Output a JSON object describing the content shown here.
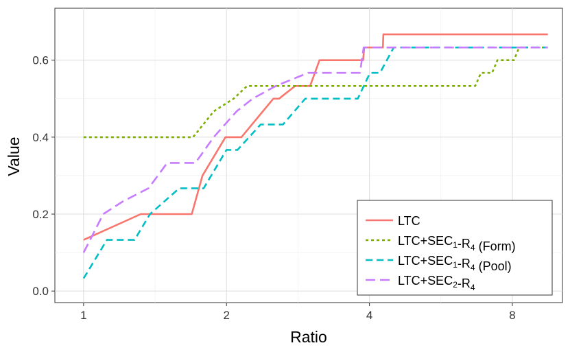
{
  "chart_data": {
    "type": "line",
    "xlabel": "Ratio",
    "ylabel": "Value",
    "x_scale": "log2",
    "xlim": [
      0.87,
      10.2
    ],
    "ylim": [
      -0.03,
      0.735
    ],
    "x_ticks": [
      1,
      2,
      4,
      8
    ],
    "x_tick_labels": [
      "1",
      "2",
      "4",
      "8"
    ],
    "y_ticks": [
      0.0,
      0.2,
      0.4,
      0.6
    ],
    "y_tick_labels": [
      "0.0",
      "0.2",
      "0.4",
      "0.6"
    ],
    "grid": true,
    "legend_position": "bottom-right",
    "series": [
      {
        "name": "LTC",
        "legend": {
          "base": "LTC",
          "sub1": "",
          "mid": "",
          "sub2": "",
          "tail": ""
        },
        "color": "#F8766D",
        "dash": "solid",
        "x": [
          1.0,
          1.32,
          1.69,
          1.78,
          1.99,
          2.15,
          2.51,
          2.58,
          2.79,
          3.0,
          3.14,
          3.46,
          3.88,
          3.9,
          4.27,
          4.28,
          9.5
        ],
        "y": [
          0.133,
          0.2,
          0.2,
          0.3,
          0.4,
          0.4,
          0.5,
          0.5,
          0.533,
          0.533,
          0.6,
          0.6,
          0.6,
          0.633,
          0.633,
          0.667,
          0.667
        ]
      },
      {
        "name": "LTC+SEC1-R4 (Form)",
        "legend": {
          "base": "LTC+SEC",
          "sub1": "1",
          "mid": "-R",
          "sub2": "4",
          "tail": " (Form)"
        },
        "color": "#7CAE00",
        "dash": "dotted",
        "x": [
          1.0,
          1.7,
          1.88,
          2.07,
          2.21,
          6.68,
          6.87,
          7.25,
          7.44,
          8.06,
          8.27,
          9.5
        ],
        "y": [
          0.4,
          0.4,
          0.467,
          0.5,
          0.533,
          0.533,
          0.567,
          0.567,
          0.6,
          0.6,
          0.633,
          0.633
        ]
      },
      {
        "name": "LTC+SEC1-R4 (Pool)",
        "legend": {
          "base": "LTC+SEC",
          "sub1": "1",
          "mid": "-R",
          "sub2": "4",
          "tail": " (Pool)"
        },
        "color": "#00BFC4",
        "dash": "dashed",
        "x": [
          1.0,
          1.12,
          1.28,
          1.38,
          1.59,
          1.79,
          2.0,
          2.11,
          2.36,
          2.63,
          2.93,
          3.78,
          4.01,
          4.21,
          4.5,
          9.5
        ],
        "y": [
          0.033,
          0.133,
          0.133,
          0.2,
          0.267,
          0.267,
          0.367,
          0.367,
          0.433,
          0.433,
          0.5,
          0.5,
          0.567,
          0.567,
          0.633,
          0.633
        ]
      },
      {
        "name": "LTC+SEC2-R4",
        "legend": {
          "base": "LTC+SEC",
          "sub1": "2",
          "mid": "-R",
          "sub2": "4",
          "tail": ""
        },
        "color": "#C77CFF",
        "dash": "longdash",
        "x": [
          1.0,
          1.1,
          1.21,
          1.37,
          1.5,
          1.72,
          1.88,
          2.1,
          2.27,
          2.54,
          2.97,
          3.82,
          3.89,
          9.5
        ],
        "y": [
          0.1,
          0.2,
          0.233,
          0.267,
          0.333,
          0.333,
          0.4,
          0.467,
          0.5,
          0.533,
          0.567,
          0.567,
          0.633,
          0.633
        ]
      }
    ]
  }
}
